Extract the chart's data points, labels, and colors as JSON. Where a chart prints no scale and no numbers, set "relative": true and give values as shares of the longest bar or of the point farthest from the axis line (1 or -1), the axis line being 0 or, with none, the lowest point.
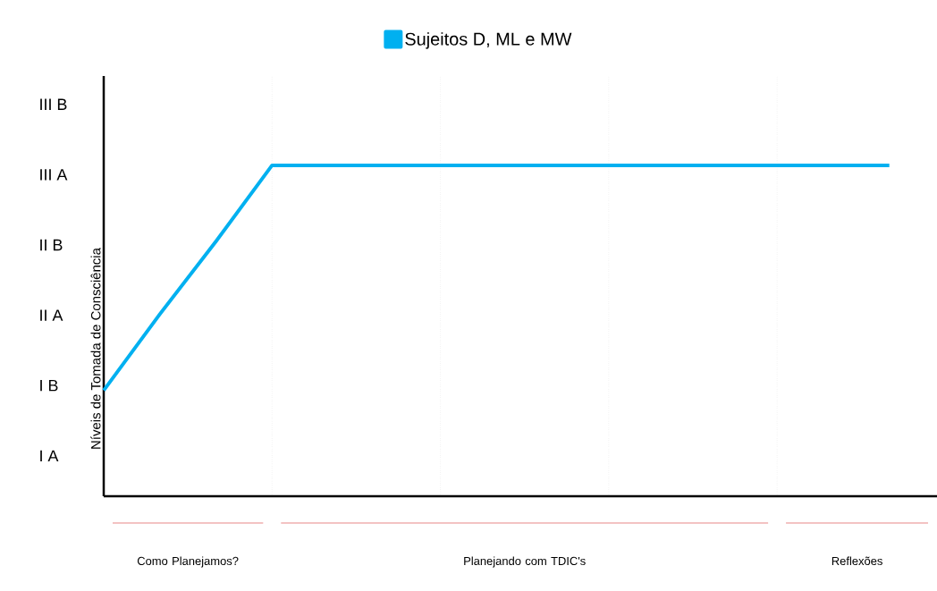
{
  "chart_data": {
    "type": "line",
    "ylabel": "Níveis de Tomada de Consciência",
    "relative": true,
    "categories": [
      null,
      null,
      null,
      null,
      null,
      null,
      null,
      null,
      null,
      null,
      null,
      null,
      null,
      null,
      null
    ],
    "series": [
      {
        "name": "Sujeitos D, ML e MW",
        "color": "#00b0f0",
        "values": [
          0.32,
          0.55,
          0.77,
          1,
          1,
          1,
          1,
          1,
          1,
          1,
          1,
          1,
          1,
          1,
          1
        ]
      }
    ],
    "annotations": [
      "III B",
      "III A",
      "II B",
      "II A",
      "I B",
      "I A",
      "Como Planejamos?",
      "Planejando com TDIC's",
      "Reflexões"
    ],
    "grid": true,
    "legend": "top",
    "marker": "none",
    "line_style": "solid"
  }
}
